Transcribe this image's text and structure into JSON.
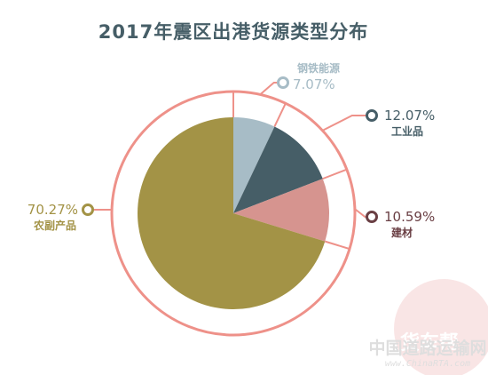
{
  "chart_data": {
    "type": "pie",
    "title": "2017年震区出港货源类型分布",
    "slices": [
      {
        "name": "钢铁能源",
        "value": 7.07,
        "label": "7.07%",
        "color": "#a7bcc6"
      },
      {
        "name": "工业品",
        "value": 12.07,
        "label": "12.07%",
        "color": "#465e67"
      },
      {
        "name": "建材",
        "value": 10.59,
        "label": "10.59%",
        "color": "#d6948f"
      },
      {
        "name": "农副产品",
        "value": 70.27,
        "label": "70.27%",
        "color": "#a39346"
      }
    ]
  },
  "label_colors": {
    "钢铁能源": "#a7bcc6",
    "工业品": "#465e67",
    "建材": "#6a3f44",
    "农副产品": "#a39346"
  },
  "colors": {
    "title": "#465e67",
    "ring": "#ee9189",
    "leader": "#ee9189"
  },
  "watermark": {
    "site": "中国道路运输网",
    "url": "www.ChinaRTA.com",
    "logo": "货车帮"
  }
}
